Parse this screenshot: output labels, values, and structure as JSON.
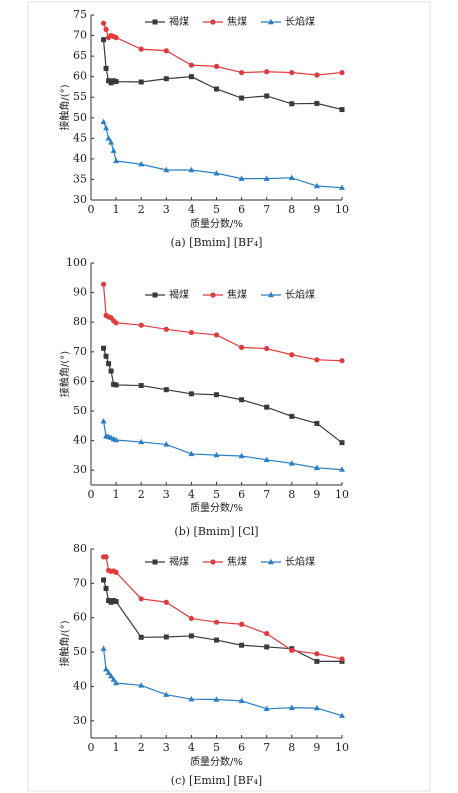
{
  "chart_data": [
    {
      "type": "line",
      "caption": "(a) [Bmim] [BF₄]",
      "xlabel": "质量分数/%",
      "ylabel": "接触角/(°)",
      "x": [
        0.5,
        0.6,
        0.7,
        0.8,
        0.9,
        1,
        2,
        3,
        4,
        5,
        6,
        7,
        8,
        9,
        10
      ],
      "xlim": [
        0,
        10
      ],
      "xticks": [
        0,
        1,
        2,
        3,
        4,
        5,
        6,
        7,
        8,
        9,
        10
      ],
      "ylim": [
        30,
        75
      ],
      "yticks": [
        30,
        35,
        40,
        45,
        50,
        55,
        60,
        65,
        70,
        75
      ],
      "series": [
        {
          "name": "褐煤",
          "color": "#3a3a3a",
          "marker": "square",
          "values": [
            69,
            62,
            59,
            58.5,
            59,
            58.8,
            58.7,
            59.5,
            60,
            57,
            54.8,
            55.3,
            53.4,
            53.5,
            52
          ]
        },
        {
          "name": "焦煤",
          "color": "#e03a3e",
          "marker": "circle",
          "values": [
            73,
            71.5,
            69.5,
            70,
            69.8,
            69.5,
            66.7,
            66.3,
            62.8,
            62.5,
            61,
            61.2,
            61,
            60.4,
            61
          ]
        },
        {
          "name": "长焰煤",
          "color": "#2a7fc4",
          "marker": "triangle",
          "values": [
            49,
            47.5,
            45,
            44,
            42,
            39.5,
            38.7,
            37.3,
            37.3,
            36.5,
            35.2,
            35.2,
            35.4,
            33.4,
            33
          ]
        }
      ]
    },
    {
      "type": "line",
      "caption": "(b) [Bmim] [Cl]",
      "xlabel": "质量分数/%",
      "ylabel": "接触角/(°)",
      "x": [
        0.5,
        0.6,
        0.7,
        0.8,
        0.9,
        1,
        2,
        3,
        4,
        5,
        6,
        7,
        8,
        9,
        10
      ],
      "xlim": [
        0,
        10
      ],
      "xticks": [
        0,
        1,
        2,
        3,
        4,
        5,
        6,
        7,
        8,
        9,
        10
      ],
      "ylim": [
        25,
        100
      ],
      "yticks": [
        30,
        40,
        50,
        60,
        70,
        80,
        90,
        100
      ],
      "series": [
        {
          "name": "褐煤",
          "color": "#3a3a3a",
          "marker": "square",
          "values": [
            71.2,
            68.5,
            66,
            63.5,
            59,
            58.8,
            58.6,
            57.2,
            55.8,
            55.5,
            53.8,
            51.3,
            48.2,
            45.8,
            39.3
          ]
        },
        {
          "name": "焦煤",
          "color": "#e03a3e",
          "marker": "circle",
          "values": [
            92.8,
            82.3,
            81.8,
            81.5,
            80.5,
            79.8,
            79,
            77.6,
            76.5,
            75.7,
            71.5,
            71.1,
            69,
            67.3,
            67
          ]
        },
        {
          "name": "长焰煤",
          "color": "#2a7fc4",
          "marker": "triangle",
          "values": [
            46.5,
            41.5,
            41.3,
            41,
            40.5,
            40.2,
            39.5,
            38.7,
            35.5,
            35.1,
            34.8,
            33.5,
            32.3,
            30.8,
            30.2
          ]
        }
      ]
    },
    {
      "type": "line",
      "caption": "(c) [Emim] [BF₄]",
      "xlabel": "质量分数/%",
      "ylabel": "接触角/(°)",
      "x": [
        0.5,
        0.6,
        0.7,
        0.8,
        0.9,
        1,
        2,
        3,
        4,
        5,
        6,
        7,
        8,
        9,
        10
      ],
      "xlim": [
        0,
        10
      ],
      "xticks": [
        0,
        1,
        2,
        3,
        4,
        5,
        6,
        7,
        8,
        9,
        10
      ],
      "ylim": [
        25,
        80
      ],
      "yticks": [
        30,
        40,
        50,
        60,
        70,
        80
      ],
      "series": [
        {
          "name": "褐煤",
          "color": "#3a3a3a",
          "marker": "square",
          "values": [
            71,
            68.5,
            65,
            64.5,
            65,
            64.7,
            54.3,
            54.4,
            54.7,
            53.5,
            52,
            51.5,
            51,
            47.3,
            47.3
          ]
        },
        {
          "name": "焦煤",
          "color": "#e03a3e",
          "marker": "circle",
          "values": [
            77.7,
            77.7,
            73.8,
            73.5,
            73.6,
            73.2,
            65.5,
            64.5,
            59.8,
            58.7,
            58.1,
            55.4,
            50.5,
            49.5,
            48
          ]
        },
        {
          "name": "长焰煤",
          "color": "#2a7fc4",
          "marker": "triangle",
          "values": [
            51,
            45,
            44,
            43,
            42,
            41,
            40.3,
            37.6,
            36.3,
            36.2,
            35.8,
            33.5,
            33.8,
            33.7,
            31.5
          ]
        }
      ]
    }
  ]
}
